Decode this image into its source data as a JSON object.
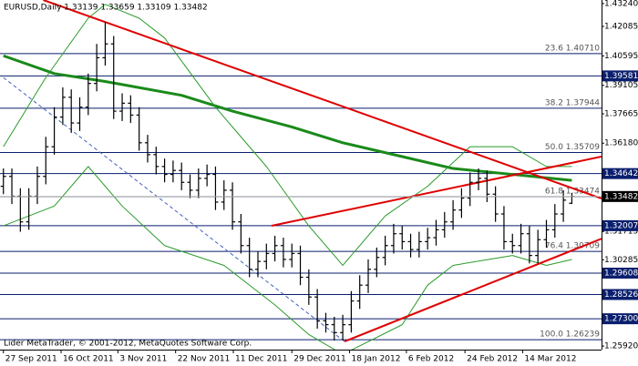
{
  "chart_data": {
    "type": "ohlc",
    "title": "EURUSD,Daily  1.33139 1.33659 1.33109 1.33482",
    "footer": "Lider MetaTrader, © 2001-2012, MetaQuotes Software Corp.",
    "bar_color": "#000000",
    "ylim": [
      1.2574,
      1.4342
    ],
    "xlim": [
      -0.4,
      70.5
    ],
    "yticks": [
      {
        "value": 1.4324,
        "label": "1.43240"
      },
      1.42085,
      1.40595,
      1.39105,
      1.37665,
      {
        "value": 1.3618,
        "label": "1.36180"
      },
      1.31715,
      1.30285,
      {
        "value": 1.2592,
        "label": "1.25920"
      }
    ],
    "xticks": [
      {
        "value": 0,
        "label": "27 Sep 2011"
      },
      {
        "value": 6.8,
        "label": "16 Oct 2011"
      },
      {
        "value": 13.5,
        "label": "3 Nov 2011"
      },
      {
        "value": 20.3,
        "label": "22 Nov 2011"
      },
      {
        "value": 27.1,
        "label": "11 Dec 2011"
      },
      {
        "value": 34,
        "label": "29 Dec 2011"
      },
      {
        "value": 40.8,
        "label": "18 Jan 2012"
      },
      {
        "value": 47.5,
        "label": "6 Feb 2012"
      },
      {
        "value": 54.4,
        "label": "24 Feb 2012"
      },
      {
        "value": 61.2,
        "label": "14 Mar 2012"
      }
    ],
    "ohlc": [
      [
        1.34,
        1.349,
        1.336,
        1.345
      ],
      [
        1.345,
        1.349,
        1.331,
        1.335
      ],
      [
        1.335,
        1.339,
        1.317,
        1.322
      ],
      [
        1.322,
        1.339,
        1.318,
        1.335
      ],
      [
        1.335,
        1.35,
        1.331,
        1.345
      ],
      [
        1.345,
        1.365,
        1.341,
        1.36
      ],
      [
        1.36,
        1.38,
        1.356,
        1.375
      ],
      [
        1.375,
        1.39,
        1.371,
        1.385
      ],
      [
        1.385,
        1.389,
        1.367,
        1.372
      ],
      [
        1.372,
        1.385,
        1.368,
        1.38
      ],
      [
        1.38,
        1.397,
        1.376,
        1.392
      ],
      [
        1.392,
        1.412,
        1.388,
        1.405
      ],
      [
        1.405,
        1.423,
        1.401,
        1.412
      ],
      [
        1.412,
        1.416,
        1.374,
        1.378
      ],
      [
        1.378,
        1.387,
        1.373,
        1.382
      ],
      [
        1.382,
        1.386,
        1.372,
        1.376
      ],
      [
        1.376,
        1.38,
        1.358,
        1.362
      ],
      [
        1.362,
        1.366,
        1.352,
        1.356
      ],
      [
        1.356,
        1.36,
        1.346,
        1.35
      ],
      [
        1.35,
        1.354,
        1.342,
        1.346
      ],
      [
        1.346,
        1.353,
        1.342,
        1.348
      ],
      [
        1.348,
        1.352,
        1.338,
        1.342
      ],
      [
        1.342,
        1.346,
        1.334,
        1.338
      ],
      [
        1.338,
        1.349,
        1.334,
        1.344
      ],
      [
        1.344,
        1.351,
        1.34,
        1.346
      ],
      [
        1.346,
        1.35,
        1.328,
        1.332
      ],
      [
        1.332,
        1.343,
        1.328,
        1.338
      ],
      [
        1.338,
        1.342,
        1.318,
        1.322
      ],
      [
        1.322,
        1.326,
        1.306,
        1.31
      ],
      [
        1.31,
        1.314,
        1.294,
        1.298
      ],
      [
        1.298,
        1.307,
        1.294,
        1.302
      ],
      [
        1.302,
        1.311,
        1.298,
        1.306
      ],
      [
        1.306,
        1.315,
        1.302,
        1.31
      ],
      [
        1.31,
        1.314,
        1.299,
        1.303
      ],
      [
        1.303,
        1.311,
        1.299,
        1.306
      ],
      [
        1.306,
        1.31,
        1.29,
        1.294
      ],
      [
        1.294,
        1.298,
        1.28,
        1.284
      ],
      [
        1.284,
        1.288,
        1.268,
        1.272
      ],
      [
        1.272,
        1.276,
        1.266,
        1.27
      ],
      [
        1.27,
        1.274,
        1.262,
        1.266
      ],
      [
        1.266,
        1.275,
        1.262,
        1.27
      ],
      [
        1.27,
        1.287,
        1.266,
        1.282
      ],
      [
        1.282,
        1.295,
        1.278,
        1.29
      ],
      [
        1.29,
        1.303,
        1.286,
        1.298
      ],
      [
        1.298,
        1.309,
        1.294,
        1.304
      ],
      [
        1.304,
        1.315,
        1.3,
        1.31
      ],
      [
        1.31,
        1.321,
        1.306,
        1.316
      ],
      [
        1.316,
        1.32,
        1.308,
        1.312
      ],
      [
        1.312,
        1.316,
        1.304,
        1.308
      ],
      [
        1.308,
        1.317,
        1.304,
        1.312
      ],
      [
        1.312,
        1.319,
        1.308,
        1.314
      ],
      [
        1.314,
        1.323,
        1.31,
        1.318
      ],
      [
        1.318,
        1.327,
        1.314,
        1.322
      ],
      [
        1.322,
        1.333,
        1.318,
        1.328
      ],
      [
        1.328,
        1.339,
        1.324,
        1.334
      ],
      [
        1.334,
        1.347,
        1.33,
        1.342
      ],
      [
        1.342,
        1.349,
        1.338,
        1.344
      ],
      [
        1.344,
        1.348,
        1.332,
        1.336
      ],
      [
        1.336,
        1.34,
        1.322,
        1.326
      ],
      [
        1.326,
        1.33,
        1.308,
        1.312
      ],
      [
        1.312,
        1.316,
        1.306,
        1.31
      ],
      [
        1.31,
        1.321,
        1.306,
        1.316
      ],
      [
        1.316,
        1.32,
        1.301,
        1.305
      ],
      [
        1.305,
        1.318,
        1.301,
        1.313
      ],
      [
        1.313,
        1.323,
        1.309,
        1.318
      ],
      [
        1.318,
        1.331,
        1.314,
        1.326
      ],
      [
        1.326,
        1.338,
        1.322,
        1.333
      ],
      [
        1.33139,
        1.33659,
        1.33109,
        1.33482
      ]
    ],
    "indicators": [
      {
        "color": "#1a8a1a",
        "width": 3,
        "x": [
          0,
          6,
          12,
          21,
          27,
          34,
          40,
          47,
          53,
          60,
          67
        ],
        "values": [
          1.406,
          1.397,
          1.393,
          1.386,
          1.378,
          1.37,
          1.362,
          1.355,
          1.349,
          1.346,
          1.343
        ]
      },
      {
        "color": "#2a9a2a",
        "width": 1,
        "x": [
          0,
          5,
          10,
          12,
          16,
          19,
          25,
          31,
          36,
          40,
          45,
          50,
          55,
          60,
          64,
          67
        ],
        "values": [
          1.36,
          1.395,
          1.425,
          1.432,
          1.425,
          1.415,
          1.38,
          1.35,
          1.32,
          1.3,
          1.325,
          1.34,
          1.36,
          1.36,
          1.35,
          1.35
        ]
      },
      {
        "color": "#2a9a2a",
        "width": 1,
        "x": [
          0,
          6,
          10,
          14,
          19,
          26,
          32,
          36,
          40,
          47,
          50,
          53,
          60,
          64,
          67
        ],
        "values": [
          1.32,
          1.33,
          1.35,
          1.33,
          1.31,
          1.3,
          1.28,
          1.265,
          1.255,
          1.27,
          1.29,
          1.3,
          1.305,
          1.3,
          1.303
        ]
      }
    ],
    "trendlines": [
      {
        "color": "#e00000",
        "style": "solid",
        "x": [
          4.7,
          70.5
        ],
        "values": [
          1.4342,
          1.3338
        ]
      },
      {
        "color": "#e00000",
        "style": "solid",
        "x": [
          31.6,
          70.5
        ],
        "values": [
          1.32,
          1.355
        ]
      },
      {
        "color": "#e00000",
        "style": "solid",
        "x": [
          40.2,
          70.5
        ],
        "values": [
          1.2615,
          1.3135
        ]
      },
      {
        "color": "#4060c0",
        "style": "dashed",
        "x": [
          0,
          40.2
        ],
        "values": [
          1.395,
          1.2615
        ]
      }
    ],
    "level_color": "#0a1f6e",
    "levels": [
      1.39581,
      1.34642,
      1.32007,
      1.29608,
      1.28526,
      {
        "value": 1.273,
        "label": "1.27300"
      }
    ],
    "fib_levels": [
      {
        "value": 1.4071,
        "label": "23.6 1.40710"
      },
      {
        "value": 1.37944,
        "label": "38.2 1.37944"
      },
      {
        "value": 1.35709,
        "label": "50.0 1.35709"
      },
      {
        "value": 1.33474,
        "label": "61.8 1.33474"
      },
      {
        "value": 1.30709,
        "label": "76.4 1.30709"
      },
      {
        "value": 1.26239,
        "label": "100.0 1.26239"
      }
    ]
  }
}
